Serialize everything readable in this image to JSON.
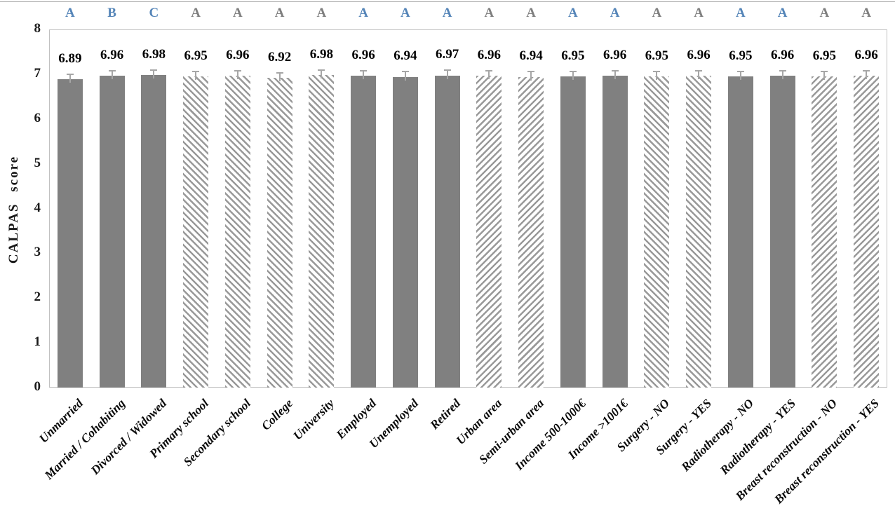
{
  "chart_data": {
    "type": "bar",
    "title": "",
    "ylabel": "CALPAS score",
    "ylim": [
      0,
      8
    ],
    "yticks": [
      0,
      1,
      2,
      3,
      4,
      5,
      6,
      7,
      8
    ],
    "grid": false,
    "legend": false,
    "categories": [
      "Unmarried",
      "Married / Cohabiting",
      "Divorced / Widowed",
      "Primary school",
      "Secondary school",
      "College",
      "University",
      "Employed",
      "Unemployed",
      "Retired",
      "Urban area",
      "Semi-urban area",
      "Income 500-1000€",
      "Income >1001€",
      "Surgery - NO",
      "Surgery - YES",
      "Radiotherapy - NO",
      "Radiotherapy - YES",
      "Breast reconstruction - NO",
      "Breast reconstruction - YES"
    ],
    "values": [
      6.89,
      6.96,
      6.98,
      6.95,
      6.96,
      6.92,
      6.98,
      6.96,
      6.94,
      6.97,
      6.96,
      6.94,
      6.95,
      6.96,
      6.95,
      6.96,
      6.95,
      6.96,
      6.95,
      6.96
    ],
    "significance_letters": [
      "A",
      "B",
      "C",
      "A",
      "A",
      "A",
      "A",
      "A",
      "A",
      "A",
      "A",
      "A",
      "A",
      "A",
      "A",
      "A",
      "A",
      "A",
      "A",
      "A"
    ],
    "letter_colors": [
      "blue",
      "blue",
      "blue",
      "gray",
      "gray",
      "gray",
      "gray",
      "blue",
      "blue",
      "blue",
      "gray",
      "gray",
      "blue",
      "blue",
      "gray",
      "gray",
      "blue",
      "blue",
      "gray",
      "gray"
    ],
    "bar_styles": [
      "solid",
      "solid",
      "solid",
      "hatch-back",
      "hatch-back",
      "hatch-back",
      "hatch-back",
      "solid",
      "solid",
      "solid",
      "hatch-fwd",
      "hatch-fwd",
      "solid",
      "solid",
      "hatch-back",
      "hatch-back",
      "solid",
      "solid",
      "hatch-fwd",
      "hatch-fwd"
    ],
    "error_bar": 0.13
  },
  "colors": {
    "solid_bar": "#808080",
    "hatch_stripe": "#999999",
    "letter_blue": "#5585b8",
    "letter_gray": "#7f7f7f",
    "plot_border": "#c0c0c0",
    "error_bar": "#a6a6a6",
    "value_label": "#000000",
    "top_rule": "#a9a9a9"
  }
}
